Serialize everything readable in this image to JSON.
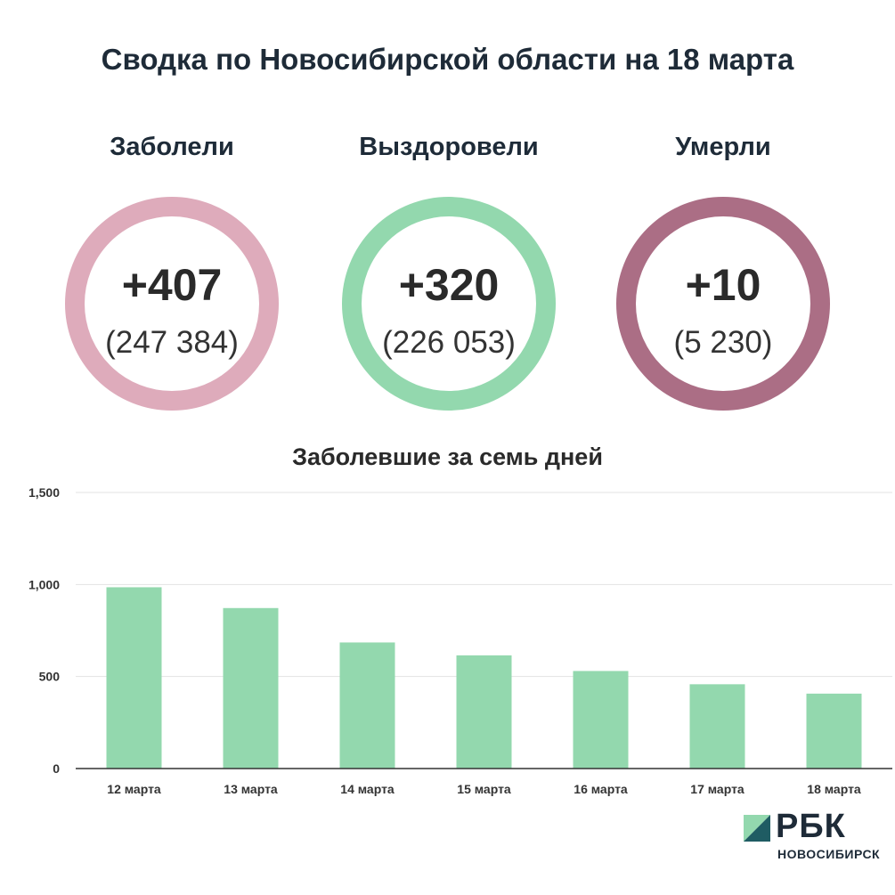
{
  "title": "Сводка по Новосибирской области на 18 марта",
  "stats": [
    {
      "label": "Заболели",
      "delta": "+407",
      "total": "(247 384)",
      "color": "#deabbb"
    },
    {
      "label": "Выздоровели",
      "delta": "+320",
      "total": "(226 053)",
      "color": "#93d8ae"
    },
    {
      "label": "Умерли",
      "delta": "+10",
      "total": "(5 230)",
      "color": "#ab6e85"
    }
  ],
  "chart_data": {
    "type": "bar",
    "title": "Заболевшие за семь дней",
    "categories": [
      "12 марта",
      "13 марта",
      "14 марта",
      "15 марта",
      "16 марта",
      "17 марта",
      "18 марта"
    ],
    "values": [
      985,
      872,
      685,
      615,
      530,
      458,
      407
    ],
    "ylim": [
      0,
      1500
    ],
    "yticks": [
      0,
      500,
      1000,
      1500
    ],
    "ytick_labels": [
      "0",
      "500",
      "1,000",
      "1,500"
    ],
    "grid": true,
    "bar_color": "#93d8ae"
  },
  "logo": {
    "name": "РБК",
    "sub": "НОВОСИБИРСК",
    "icon": "rbc-logo-mark"
  }
}
